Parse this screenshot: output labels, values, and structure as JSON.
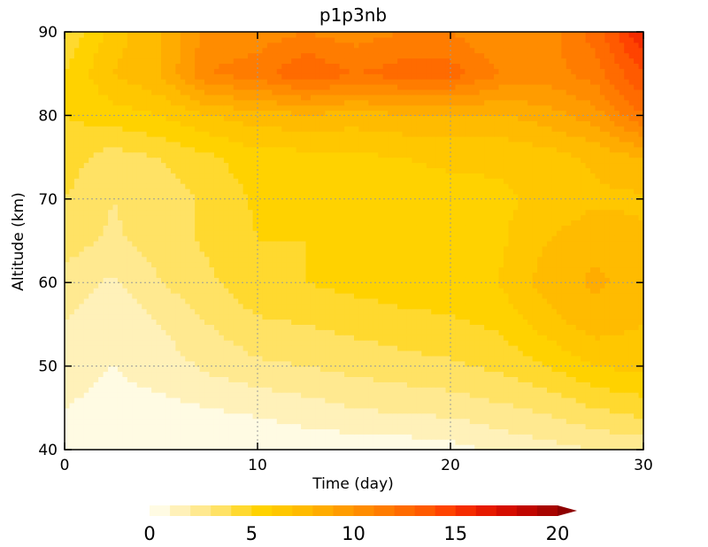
{
  "chart_data": {
    "type": "heatmap",
    "title": "p1p3nb",
    "xlabel": "Time (day)",
    "ylabel": "Altitude (km)",
    "xlim": [
      0,
      30
    ],
    "ylim": [
      40,
      90
    ],
    "x_ticks": [
      0,
      10,
      20,
      30
    ],
    "y_ticks": [
      40,
      50,
      60,
      70,
      80,
      90
    ],
    "grid": true,
    "x": [
      0,
      2.5,
      5,
      7.5,
      10,
      12.5,
      15,
      17.5,
      20,
      22.5,
      25,
      27.5,
      30
    ],
    "y": [
      40,
      45,
      50,
      55,
      60,
      65,
      70,
      75,
      80,
      85,
      90
    ],
    "z": [
      [
        0.5,
        0.3,
        0.2,
        0.2,
        0.2,
        0.3,
        0.3,
        0.4,
        0.6,
        1.2,
        1.6,
        2.0,
        2.3
      ],
      [
        1.0,
        0.6,
        0.7,
        1.0,
        1.2,
        1.6,
        2.0,
        2.2,
        2.4,
        2.8,
        3.2,
        4.0,
        4.5
      ],
      [
        1.5,
        1.0,
        1.5,
        2.2,
        2.8,
        3.0,
        3.3,
        3.6,
        3.8,
        4.2,
        5.0,
        6.0,
        6.3
      ],
      [
        2.0,
        1.2,
        2.0,
        3.0,
        3.8,
        4.0,
        4.3,
        4.6,
        4.8,
        5.2,
        6.5,
        7.5,
        7.0
      ],
      [
        2.5,
        1.8,
        3.0,
        3.8,
        4.8,
        5.0,
        5.3,
        5.6,
        5.6,
        6.0,
        7.5,
        8.2,
        7.5
      ],
      [
        3.5,
        2.8,
        3.5,
        4.2,
        5.0,
        5.0,
        5.2,
        5.5,
        5.5,
        5.8,
        7.0,
        7.8,
        7.2
      ],
      [
        4.0,
        3.0,
        3.5,
        4.2,
        5.2,
        5.0,
        5.2,
        5.5,
        5.6,
        5.8,
        6.2,
        6.8,
        6.8
      ],
      [
        4.5,
        3.5,
        4.0,
        4.8,
        5.6,
        5.6,
        5.8,
        6.0,
        6.2,
        6.2,
        6.5,
        7.2,
        8.0
      ],
      [
        5.0,
        5.5,
        6.0,
        7.0,
        7.5,
        7.8,
        7.5,
        7.8,
        8.0,
        7.8,
        8.5,
        9.5,
        12.0
      ],
      [
        5.0,
        7.0,
        8.0,
        11.0,
        11.5,
        13.0,
        12.0,
        12.5,
        12.5,
        11.0,
        10.5,
        11.5,
        14.0
      ],
      [
        4.0,
        6.5,
        8.0,
        10.5,
        10.5,
        11.0,
        10.5,
        11.0,
        11.0,
        10.0,
        10.5,
        12.5,
        16.0
      ]
    ],
    "colorbar": {
      "ticks": [
        0,
        5,
        10,
        15,
        20
      ],
      "min": 0,
      "max": 20,
      "extend": "max",
      "colors": [
        "#fffbe3",
        "#fff1b9",
        "#ffe990",
        "#ffe265",
        "#ffd92f",
        "#ffd200",
        "#ffc700",
        "#ffbb00",
        "#ffac00",
        "#ff9c00",
        "#ff8c00",
        "#ff7c00",
        "#ff6b00",
        "#ff5a00",
        "#ff4300",
        "#f52c00",
        "#e61a00",
        "#d50d00",
        "#c00600",
        "#a80400",
        "#8e0000"
      ]
    }
  }
}
